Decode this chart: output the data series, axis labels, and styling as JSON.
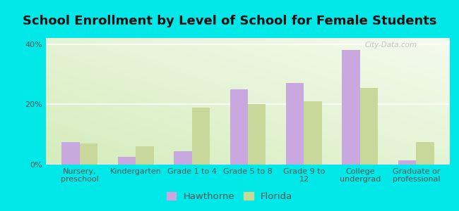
{
  "title": "School Enrollment by Level of School for Female Students",
  "categories": [
    "Nursery,\npreschool",
    "Kindergarten",
    "Grade 1 to 4",
    "Grade 5 to 8",
    "Grade 9 to\n12",
    "College\nundergrad",
    "Graduate or\nprofessional"
  ],
  "hawthorne": [
    7.5,
    2.5,
    4.5,
    25.0,
    27.0,
    38.0,
    1.5
  ],
  "florida": [
    7.0,
    6.0,
    19.0,
    20.0,
    21.0,
    25.5,
    7.5
  ],
  "hawthorne_color": "#c9a8e0",
  "florida_color": "#c8d89a",
  "background_color": "#00e8e8",
  "plot_bg_color_bottom_left": "#d4edbb",
  "plot_bg_color_top_right": "#f5faee",
  "ylabel": "",
  "ylim": [
    0,
    42
  ],
  "yticks": [
    0,
    20,
    40
  ],
  "ytick_labels": [
    "0%",
    "20%",
    "40%"
  ],
  "watermark": "City-Data.com",
  "title_fontsize": 13,
  "tick_fontsize": 8.0,
  "legend_fontsize": 9.5,
  "bar_width": 0.32
}
